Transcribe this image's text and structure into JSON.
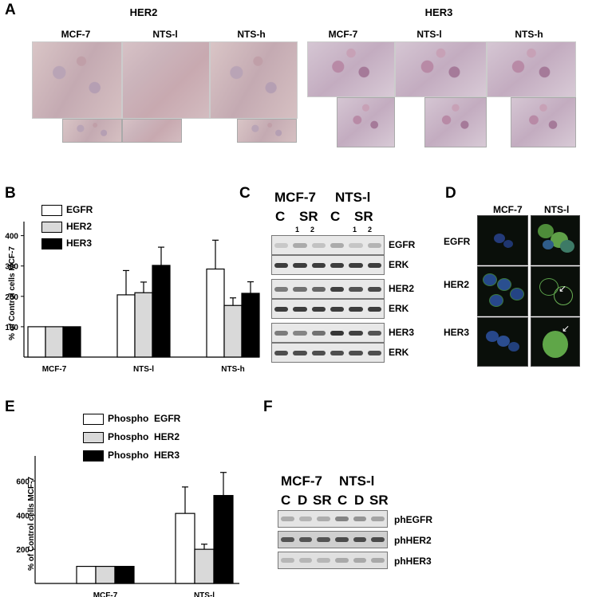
{
  "panels": {
    "A": {
      "label": "A",
      "her2_title": "HER2",
      "her3_title": "HER3",
      "her2_cols": [
        "MCF-7",
        "NTS-l",
        "NTS-h"
      ],
      "her3_cols": [
        "MCF-7",
        "NTS-l",
        "NTS-h"
      ]
    },
    "B": {
      "label": "B",
      "ylabel": "% of Control cells MCF-7",
      "legend": [
        "EGFR",
        "HER2",
        "HER3"
      ]
    },
    "C": {
      "label": "C",
      "groups": [
        "MCF-7",
        "NTS-l"
      ],
      "lanes": [
        "C",
        "SR",
        "C",
        "SR"
      ],
      "sublanes": [
        "1",
        "2",
        "1",
        "2"
      ],
      "rows": [
        "EGFR",
        "ERK",
        "HER2",
        "ERK",
        "HER3",
        "ERK"
      ]
    },
    "D": {
      "label": "D",
      "cols": [
        "MCF-7",
        "NTS-l"
      ],
      "rows": [
        "EGFR",
        "HER2",
        "HER3"
      ]
    },
    "E": {
      "label": "E",
      "ylabel": "% of Control cells MCF-7",
      "legend": [
        "Phospho  EGFR",
        "Phospho  HER2",
        "Phospho  HER3"
      ]
    },
    "F": {
      "label": "F",
      "groups": [
        "MCF-7",
        "NTS-l"
      ],
      "lanes": [
        "C",
        "D",
        "SR",
        "C",
        "D",
        "SR"
      ],
      "rows": [
        "phEGFR",
        "phHER2",
        "phHER3"
      ]
    }
  },
  "chart_data": [
    {
      "type": "bar",
      "panel": "B",
      "categories": [
        "MCF-7",
        "NTS-l",
        "NTS-h"
      ],
      "series": [
        {
          "name": "EGFR",
          "values": [
            100,
            205,
            290
          ],
          "errors": [
            0,
            80,
            95
          ],
          "color": "#ffffff"
        },
        {
          "name": "HER2",
          "values": [
            100,
            212,
            170
          ],
          "errors": [
            0,
            35,
            25
          ],
          "color": "#d9d9d9"
        },
        {
          "name": "HER3",
          "values": [
            100,
            302,
            210
          ],
          "errors": [
            0,
            60,
            38
          ],
          "color": "#000000"
        }
      ],
      "ylabel": "% of Control cells MCF-7",
      "yticks": [
        100,
        200,
        300,
        400
      ],
      "ylim": [
        0,
        420
      ],
      "legend_position": "top-left"
    },
    {
      "type": "bar",
      "panel": "E",
      "categories": [
        "MCF-7",
        "NTS-l"
      ],
      "series": [
        {
          "name": "Phospho  EGFR",
          "values": [
            100,
            410
          ],
          "errors": [
            0,
            155
          ],
          "color": "#ffffff"
        },
        {
          "name": "Phospho  HER2",
          "values": [
            100,
            200
          ],
          "errors": [
            0,
            30
          ],
          "color": "#d9d9d9"
        },
        {
          "name": "Phospho  HER3",
          "values": [
            100,
            515
          ],
          "errors": [
            0,
            135
          ],
          "color": "#000000"
        }
      ],
      "ylabel": "% of Control cells MCF-7",
      "yticks": [
        200,
        400,
        600
      ],
      "ylim": [
        0,
        700
      ],
      "legend_position": "top-left"
    }
  ]
}
